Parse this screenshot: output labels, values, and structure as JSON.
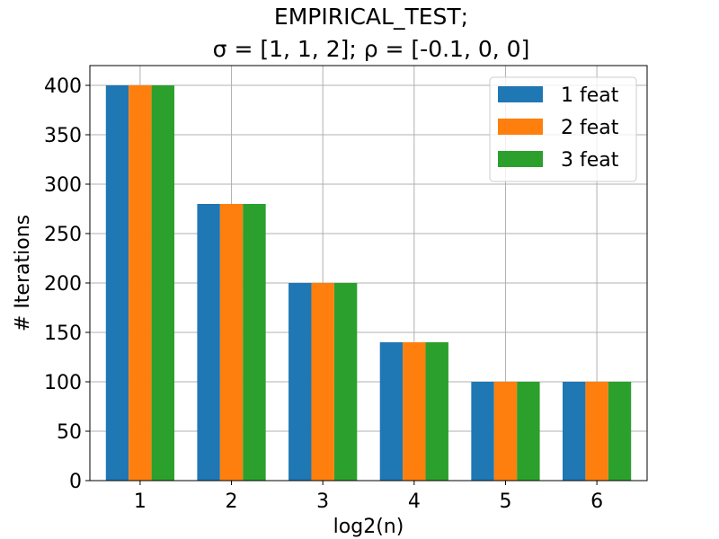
{
  "chart_data": {
    "type": "bar",
    "title": "EMPIRICAL_TEST;",
    "subtitle": "σ = [1, 1, 2];  ρ = [-0.1, 0, 0]",
    "xlabel": "log2(n)",
    "ylabel": "# Iterations",
    "categories": [
      "1",
      "2",
      "3",
      "4",
      "5",
      "6"
    ],
    "ylim": [
      0,
      420
    ],
    "yticks": [
      0,
      50,
      100,
      150,
      200,
      250,
      300,
      350,
      400
    ],
    "grid": true,
    "legend_position": "top-right",
    "series": [
      {
        "name": "1 feat",
        "color": "#1f77b4",
        "values": [
          400,
          280,
          200,
          140,
          100,
          100
        ]
      },
      {
        "name": "2 feat",
        "color": "#ff7f0e",
        "values": [
          400,
          280,
          200,
          140,
          100,
          100
        ]
      },
      {
        "name": "3 feat",
        "color": "#2ca02c",
        "values": [
          400,
          280,
          200,
          140,
          100,
          100
        ]
      }
    ]
  }
}
